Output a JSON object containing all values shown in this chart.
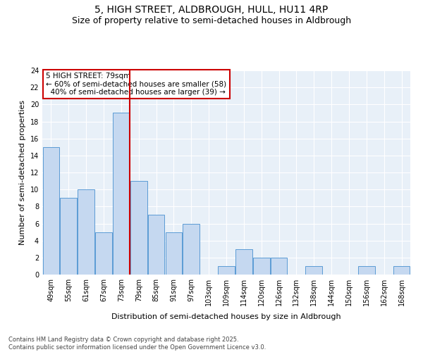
{
  "title": "5, HIGH STREET, ALDBROUGH, HULL, HU11 4RP",
  "subtitle": "Size of property relative to semi-detached houses in Aldbrough",
  "xlabel": "Distribution of semi-detached houses by size in Aldbrough",
  "ylabel": "Number of semi-detached properties",
  "categories": [
    "49sqm",
    "55sqm",
    "61sqm",
    "67sqm",
    "73sqm",
    "79sqm",
    "85sqm",
    "91sqm",
    "97sqm",
    "103sqm",
    "109sqm",
    "114sqm",
    "120sqm",
    "126sqm",
    "132sqm",
    "138sqm",
    "144sqm",
    "150sqm",
    "156sqm",
    "162sqm",
    "168sqm"
  ],
  "values": [
    15,
    9,
    10,
    5,
    19,
    11,
    7,
    5,
    6,
    0,
    1,
    3,
    2,
    2,
    0,
    1,
    0,
    0,
    1,
    0,
    1
  ],
  "bar_color": "#c5d8f0",
  "bar_edge_color": "#5b9bd5",
  "vline_color": "#cc0000",
  "annotation_text": "5 HIGH STREET: 79sqm\n← 60% of semi-detached houses are smaller (58)\n  40% of semi-detached houses are larger (39) →",
  "annotation_box_edgecolor": "#cc0000",
  "ylim": [
    0,
    24
  ],
  "yticks": [
    0,
    2,
    4,
    6,
    8,
    10,
    12,
    14,
    16,
    18,
    20,
    22,
    24
  ],
  "background_color": "#e8f0f8",
  "footer": "Contains HM Land Registry data © Crown copyright and database right 2025.\nContains public sector information licensed under the Open Government Licence v3.0.",
  "title_fontsize": 10,
  "subtitle_fontsize": 9,
  "axis_label_fontsize": 8,
  "tick_fontsize": 7,
  "annotation_fontsize": 7.5,
  "footer_fontsize": 6
}
